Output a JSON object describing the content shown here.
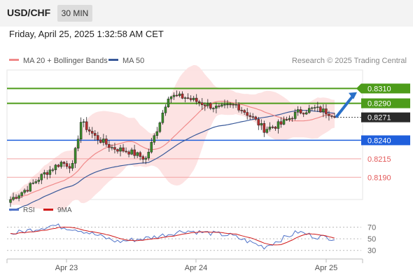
{
  "header": {
    "symbol": "USD/CHF",
    "timeframe": "30 MIN",
    "datetime": "Friday, April 25, 2025 1:32:58 AM CET"
  },
  "legend": {
    "ma20_label": "MA 20 + Bollinger Bands",
    "ma50_label": "MA 50",
    "credit": "Research © 2025 Trading Central"
  },
  "rsi_legend": {
    "rsi_label": "RSI",
    "ma_label": "9MA"
  },
  "colors": {
    "resistance": "#4d9c1a",
    "support": "#1f5fdc",
    "support_minor": "#e35a5a",
    "last_price": "#2a2a2a",
    "ma20": "#f08a8a",
    "ma50": "#3a5a9a",
    "bollinger_fill": "#fde0e0",
    "candle_up": "#3c8d2b",
    "candle_down": "#b92e2e",
    "arrow": "#2a70c8",
    "rsi": "#4f72c8",
    "rsi_ma": "#d11a1a"
  },
  "chart_data": [
    {
      "type": "candlestick",
      "title": "USD/CHF 30 MIN",
      "ylim": [
        0.816,
        0.8335
      ],
      "x_ticks": [
        "Apr 23",
        "Apr 24",
        "Apr 25"
      ],
      "levels": [
        {
          "value": 0.831,
          "label": "0.8310",
          "kind": "resistance"
        },
        {
          "value": 0.829,
          "label": "0.8290",
          "kind": "resistance"
        },
        {
          "value": 0.8271,
          "label": "0.8271",
          "kind": "last"
        },
        {
          "value": 0.824,
          "label": "0.8240",
          "kind": "support"
        },
        {
          "value": 0.8215,
          "label": "0.8215",
          "kind": "support_minor"
        },
        {
          "value": 0.819,
          "label": "0.8190",
          "kind": "support_minor"
        }
      ],
      "last_price": 0.8271,
      "trend_arrow": {
        "from": 0.8271,
        "to": 0.8305
      },
      "close_anchors": [
        [
          0,
          0.816
        ],
        [
          6,
          0.8175
        ],
        [
          12,
          0.8195
        ],
        [
          18,
          0.821
        ],
        [
          22,
          0.8205
        ],
        [
          25,
          0.8265
        ],
        [
          30,
          0.8245
        ],
        [
          36,
          0.823
        ],
        [
          42,
          0.8225
        ],
        [
          48,
          0.8215
        ],
        [
          52,
          0.8255
        ],
        [
          56,
          0.83
        ],
        [
          62,
          0.8298
        ],
        [
          68,
          0.829
        ],
        [
          74,
          0.8283
        ],
        [
          80,
          0.8288
        ],
        [
          86,
          0.827
        ],
        [
          90,
          0.8255
        ],
        [
          96,
          0.8262
        ],
        [
          102,
          0.8278
        ],
        [
          108,
          0.8283
        ],
        [
          115,
          0.8275
        ]
      ],
      "series": [
        {
          "name": "MA 20 + Bollinger Bands"
        },
        {
          "name": "MA 50"
        }
      ]
    },
    {
      "type": "line",
      "ylim": [
        20,
        85
      ],
      "y_ticks": [
        70,
        50,
        30
      ],
      "series": [
        {
          "name": "RSI",
          "anchors": [
            [
              0,
              58
            ],
            [
              15,
              73
            ],
            [
              24,
              66
            ],
            [
              38,
              45
            ],
            [
              50,
              52
            ],
            [
              62,
              64
            ],
            [
              78,
              56
            ],
            [
              90,
              36
            ],
            [
              102,
              62
            ],
            [
              108,
              54
            ],
            [
              115,
              51
            ]
          ]
        },
        {
          "name": "9MA"
        }
      ]
    }
  ]
}
